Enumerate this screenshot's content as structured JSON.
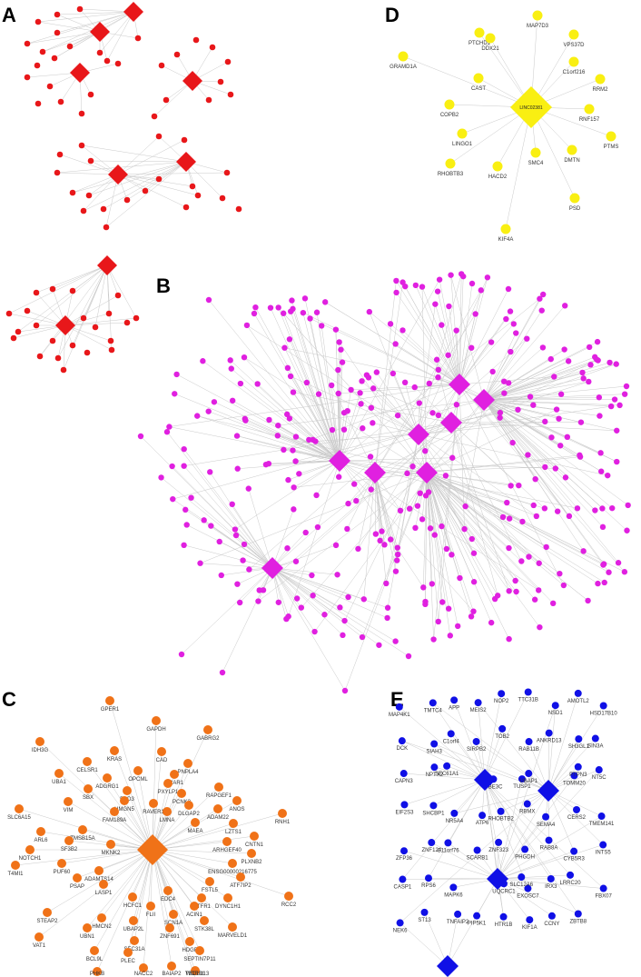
{
  "panels": {
    "a": {
      "letter": "A",
      "color": "#e8171a"
    },
    "b": {
      "letter": "B",
      "color": "#e020e0"
    },
    "c": {
      "letter": "C",
      "color": "#f07218"
    },
    "d": {
      "letter": "D",
      "color": "#f9ef12",
      "hub": "LINC02381",
      "nodes": [
        "MAP7D3",
        "PTCHD1",
        "DDX21",
        "VPS37D",
        "GRAMD1A",
        "C1orf216",
        "CAST",
        "RRM2",
        "COPB2",
        "RNF157",
        "LINGO1",
        "PTMS",
        "DMTN",
        "SMC4",
        "RHOBTB3",
        "HACD2",
        "PSD",
        "KIF4A"
      ]
    },
    "e": {
      "letter": "E",
      "color": "#1010e6"
    }
  },
  "panel_c_nodes": [
    "GPER1",
    "GAPDH",
    "GABRG2",
    "IDH3G",
    "KRAS",
    "CAD",
    "PNPLA4",
    "CELSR1",
    "OPCML",
    "BCAR1",
    "UBA1",
    "ADGRG1",
    "PXYLP1",
    "SBX",
    "PSD3",
    "PCNK3",
    "RAPGEF1",
    "VIM",
    "HMGN5",
    "RAVER1",
    "ANOS",
    "SLC6A15",
    "FAM189A",
    "DLGAP2",
    "ADAM22",
    "RNH1",
    "LMNA",
    "MAEA",
    "LZTS1",
    "ARL6",
    "TMSB15A",
    "CNTN1",
    "SF3B2",
    "ARHGEF40",
    "NOTCH1",
    "MKNK2",
    "PLXNB2",
    "T4MI1",
    "PUF60",
    "ENSG00000216775",
    "ADAMTS14",
    "ATF7IP2",
    "PSAP",
    "FSTL5",
    "LASP1",
    "EDC4",
    "DYNC1H1",
    "HCFC1",
    "MTFR1",
    "RCC2",
    "FLII",
    "ACIN1",
    "STEAP2",
    "SCN1A",
    "HMCN2",
    "UBAP2L",
    "STK38L",
    "UBN1",
    "ZNF691",
    "MARVELD1",
    "VAT1",
    "SEC31A",
    "HDGF",
    "BCL9L",
    "PLEC",
    "SEPTIN7P11",
    "PHKB",
    "NACC2",
    "BAIAP2",
    "WDR81",
    "TBC1D13"
  ],
  "panel_e_nodes": [
    "MAP4K1",
    "TMTC4",
    "APP",
    "MEIS2",
    "NOP2",
    "TTC31B",
    "NSD1",
    "AMOTL2",
    "HSD17B10",
    "DCK",
    "SIAH3",
    "C1orf4",
    "SIRPB2",
    "TOB2",
    "RAB11B",
    "ANKRD13",
    "SH3GL1",
    "SIN3A",
    "CAPN3",
    "NPTX2",
    "SEC61A1",
    "UBE3C",
    "TUSP1",
    "UBAP1",
    "TOMM20",
    "PTPN3",
    "NT5C",
    "EIF2S3",
    "SHCBP1",
    "NR5A4",
    "ATP6",
    "RHOBTB2",
    "RBMX",
    "SEMA4",
    "CERS2",
    "TMEM141",
    "ZFP36",
    "ZNF124",
    "C11orf76",
    "SCARB1",
    "ZNF323",
    "PHGDH",
    "RAB8A",
    "CYB5R3",
    "INTS5",
    "CASP1",
    "RPS6",
    "MAPK6",
    "UQCRC1",
    "EXOSC7",
    "SLC12A6",
    "IRX3",
    "LRRC20",
    "FBX07",
    "NEK6",
    "ST13",
    "TNFAIP2",
    "PIP5K1",
    "HTR1B",
    "KIF1A",
    "CCNY",
    "ZBTB8"
  ]
}
